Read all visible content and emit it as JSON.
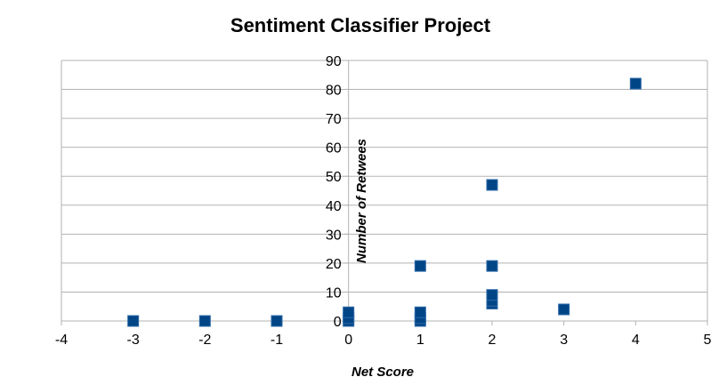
{
  "chart_data": {
    "type": "scatter",
    "title": "Sentiment Classifier Project",
    "xlabel": "Net Score",
    "ylabel": "Number of Retwees",
    "xlim": [
      -4,
      5
    ],
    "ylim": [
      0,
      90
    ],
    "xticks": [
      -4,
      -3,
      -2,
      -1,
      0,
      1,
      2,
      3,
      4,
      5
    ],
    "yticks": [
      0,
      10,
      20,
      30,
      40,
      50,
      60,
      70,
      80,
      90
    ],
    "grid": true,
    "legend": "none",
    "marker_color": "#004586",
    "grid_color": "#b3b3b3",
    "series": [
      {
        "points": [
          {
            "x": -3,
            "y": 0
          },
          {
            "x": -2,
            "y": 0
          },
          {
            "x": -1,
            "y": 0
          },
          {
            "x": 0,
            "y": 0
          },
          {
            "x": 0,
            "y": 1
          },
          {
            "x": 0,
            "y": 3
          },
          {
            "x": 1,
            "y": 0
          },
          {
            "x": 1,
            "y": 1
          },
          {
            "x": 1,
            "y": 3
          },
          {
            "x": 1,
            "y": 19
          },
          {
            "x": 2,
            "y": 6
          },
          {
            "x": 2,
            "y": 7
          },
          {
            "x": 2,
            "y": 9
          },
          {
            "x": 2,
            "y": 19
          },
          {
            "x": 2,
            "y": 47
          },
          {
            "x": 3,
            "y": 4
          },
          {
            "x": 4,
            "y": 82
          }
        ]
      }
    ]
  }
}
